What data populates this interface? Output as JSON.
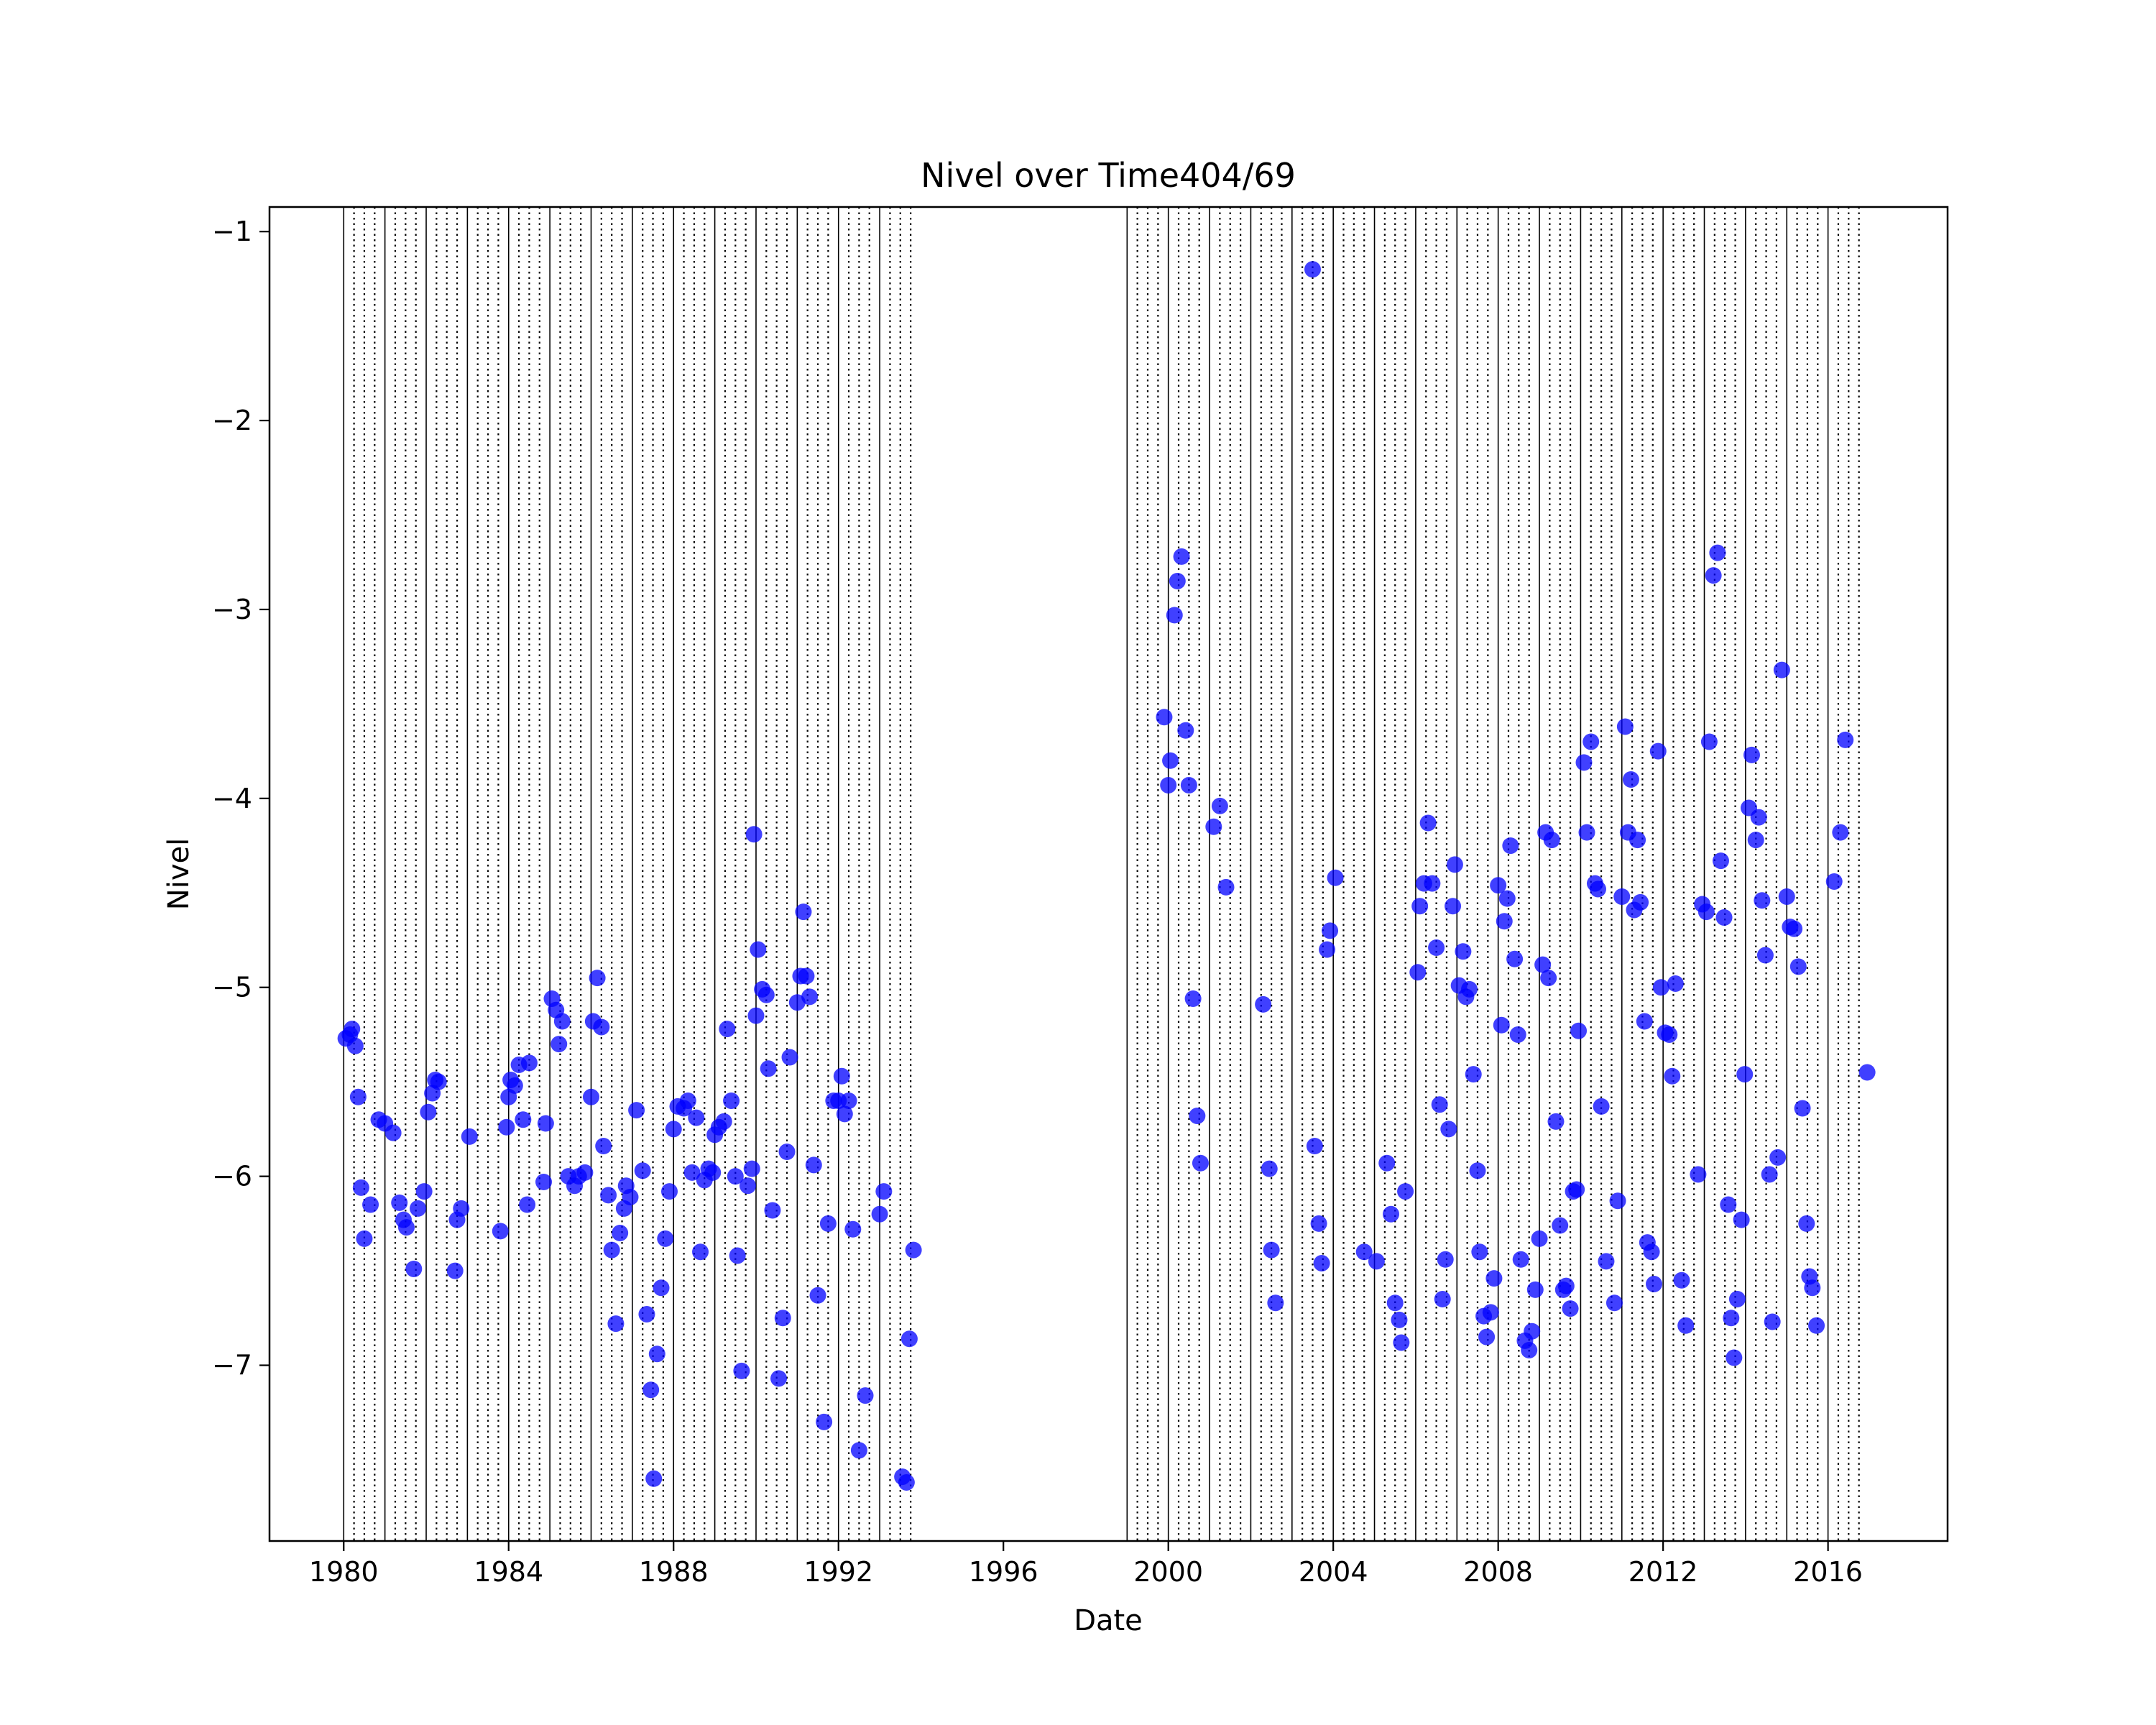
{
  "chart_data": {
    "type": "scatter",
    "title": "Nivel over Time404/69",
    "xlabel": "Date",
    "ylabel": "Nivel",
    "xlim": [
      1978.2,
      2018.9
    ],
    "ylim": [
      -7.93,
      -0.87
    ],
    "x_ticks": [
      {
        "value": 1980,
        "label": "1980"
      },
      {
        "value": 1984,
        "label": "1984"
      },
      {
        "value": 1988,
        "label": "1988"
      },
      {
        "value": 1992,
        "label": "1992"
      },
      {
        "value": 1996,
        "label": "1996"
      },
      {
        "value": 2000,
        "label": "2000"
      },
      {
        "value": 2004,
        "label": "2004"
      },
      {
        "value": 2008,
        "label": "2008"
      },
      {
        "value": 2012,
        "label": "2012"
      },
      {
        "value": 2016,
        "label": "2016"
      }
    ],
    "y_ticks": [
      {
        "value": -1,
        "label": "−1"
      },
      {
        "value": -2,
        "label": "−2"
      },
      {
        "value": -3,
        "label": "−3"
      },
      {
        "value": -4,
        "label": "−4"
      },
      {
        "value": -5,
        "label": "−5"
      },
      {
        "value": -6,
        "label": "−6"
      },
      {
        "value": -7,
        "label": "−7"
      }
    ],
    "vertical_lines": {
      "solid_years": [
        1980,
        1981,
        1982,
        1983,
        1984,
        1985,
        1986,
        1987,
        1988,
        1989,
        1990,
        1991,
        1992,
        1993,
        1999,
        2000,
        2001,
        2002,
        2003,
        2004,
        2005,
        2006,
        2007,
        2008,
        2009,
        2010,
        2011,
        2012,
        2013,
        2014,
        2015,
        2016
      ],
      "dotted_ranges": [
        [
          1980,
          1993.75
        ],
        [
          1999,
          2016.75
        ]
      ],
      "dotted_step": 0.25
    },
    "grid": false,
    "legend": "none",
    "marker_color": "#0000ff",
    "series": [
      {
        "points": [
          [
            1980.05,
            -5.27
          ],
          [
            1980.15,
            -5.25
          ],
          [
            1980.2,
            -5.22
          ],
          [
            1980.28,
            -5.31
          ],
          [
            1980.35,
            -5.58
          ],
          [
            1980.42,
            -6.06
          ],
          [
            1980.5,
            -6.33
          ],
          [
            1980.65,
            -6.15
          ],
          [
            1980.85,
            -5.7
          ],
          [
            1981.0,
            -5.72
          ],
          [
            1981.2,
            -5.77
          ],
          [
            1981.35,
            -6.14
          ],
          [
            1981.45,
            -6.23
          ],
          [
            1981.52,
            -6.27
          ],
          [
            1981.7,
            -6.49
          ],
          [
            1981.8,
            -6.17
          ],
          [
            1981.95,
            -6.08
          ],
          [
            1982.05,
            -5.66
          ],
          [
            1982.15,
            -5.56
          ],
          [
            1982.22,
            -5.49
          ],
          [
            1982.3,
            -5.5
          ],
          [
            1982.7,
            -6.5
          ],
          [
            1982.75,
            -6.23
          ],
          [
            1982.85,
            -6.17
          ],
          [
            1983.05,
            -5.79
          ],
          [
            1983.8,
            -6.29
          ],
          [
            1983.95,
            -5.74
          ],
          [
            1984.0,
            -5.58
          ],
          [
            1984.05,
            -5.49
          ],
          [
            1984.15,
            -5.52
          ],
          [
            1984.25,
            -5.41
          ],
          [
            1984.35,
            -5.7
          ],
          [
            1984.45,
            -6.15
          ],
          [
            1984.5,
            -5.4
          ],
          [
            1984.85,
            -6.03
          ],
          [
            1984.9,
            -5.72
          ],
          [
            1985.05,
            -5.06
          ],
          [
            1985.15,
            -5.12
          ],
          [
            1985.22,
            -5.3
          ],
          [
            1985.3,
            -5.18
          ],
          [
            1985.45,
            -6.0
          ],
          [
            1985.6,
            -6.05
          ],
          [
            1985.7,
            -6.0
          ],
          [
            1985.85,
            -5.98
          ],
          [
            1986.0,
            -5.58
          ],
          [
            1986.05,
            -5.18
          ],
          [
            1986.15,
            -4.95
          ],
          [
            1986.25,
            -5.21
          ],
          [
            1986.3,
            -5.84
          ],
          [
            1986.42,
            -6.1
          ],
          [
            1986.5,
            -6.39
          ],
          [
            1986.6,
            -6.78
          ],
          [
            1986.7,
            -6.3
          ],
          [
            1986.8,
            -6.17
          ],
          [
            1986.85,
            -6.05
          ],
          [
            1986.95,
            -6.11
          ],
          [
            1987.1,
            -5.65
          ],
          [
            1987.25,
            -5.97
          ],
          [
            1987.35,
            -6.73
          ],
          [
            1987.45,
            -7.13
          ],
          [
            1987.52,
            -7.6
          ],
          [
            1987.6,
            -6.94
          ],
          [
            1987.7,
            -6.59
          ],
          [
            1987.8,
            -6.33
          ],
          [
            1987.9,
            -6.08
          ],
          [
            1988.0,
            -5.75
          ],
          [
            1988.1,
            -5.63
          ],
          [
            1988.25,
            -5.64
          ],
          [
            1988.35,
            -5.6
          ],
          [
            1988.45,
            -5.98
          ],
          [
            1988.55,
            -5.69
          ],
          [
            1988.65,
            -6.4
          ],
          [
            1988.75,
            -6.02
          ],
          [
            1988.85,
            -5.96
          ],
          [
            1988.95,
            -5.98
          ],
          [
            1989.0,
            -5.78
          ],
          [
            1989.1,
            -5.74
          ],
          [
            1989.22,
            -5.71
          ],
          [
            1989.3,
            -5.22
          ],
          [
            1989.4,
            -5.6
          ],
          [
            1989.5,
            -6.0
          ],
          [
            1989.55,
            -6.42
          ],
          [
            1989.65,
            -7.03
          ],
          [
            1989.8,
            -6.05
          ],
          [
            1989.9,
            -5.96
          ],
          [
            1989.95,
            -4.19
          ],
          [
            1990.0,
            -5.15
          ],
          [
            1990.05,
            -4.8
          ],
          [
            1990.15,
            -5.01
          ],
          [
            1990.25,
            -5.04
          ],
          [
            1990.3,
            -5.43
          ],
          [
            1990.4,
            -6.18
          ],
          [
            1990.55,
            -7.07
          ],
          [
            1990.65,
            -6.75
          ],
          [
            1990.75,
            -5.87
          ],
          [
            1990.82,
            -5.37
          ],
          [
            1991.0,
            -5.08
          ],
          [
            1991.08,
            -4.94
          ],
          [
            1991.15,
            -4.6
          ],
          [
            1991.22,
            -4.94
          ],
          [
            1991.3,
            -5.05
          ],
          [
            1991.4,
            -5.94
          ],
          [
            1991.5,
            -6.63
          ],
          [
            1991.65,
            -7.3
          ],
          [
            1991.75,
            -6.25
          ],
          [
            1991.88,
            -5.6
          ],
          [
            1992.0,
            -5.6
          ],
          [
            1992.08,
            -5.47
          ],
          [
            1992.15,
            -5.67
          ],
          [
            1992.25,
            -5.6
          ],
          [
            1992.35,
            -6.28
          ],
          [
            1992.5,
            -7.45
          ],
          [
            1992.65,
            -7.16
          ],
          [
            1993.0,
            -6.2
          ],
          [
            1993.1,
            -6.08
          ],
          [
            1993.55,
            -7.59
          ],
          [
            1993.65,
            -7.62
          ],
          [
            1993.72,
            -6.86
          ],
          [
            1993.82,
            -6.39
          ],
          [
            1999.9,
            -3.57
          ],
          [
            2000.0,
            -3.93
          ],
          [
            2000.05,
            -3.8
          ],
          [
            2000.15,
            -3.03
          ],
          [
            2000.22,
            -2.85
          ],
          [
            2000.32,
            -2.72
          ],
          [
            2000.42,
            -3.64
          ],
          [
            2000.5,
            -3.93
          ],
          [
            2000.6,
            -5.06
          ],
          [
            2000.7,
            -5.68
          ],
          [
            2000.78,
            -5.93
          ],
          [
            2001.1,
            -4.15
          ],
          [
            2001.25,
            -4.04
          ],
          [
            2001.4,
            -4.47
          ],
          [
            2002.3,
            -5.09
          ],
          [
            2002.45,
            -5.96
          ],
          [
            2002.5,
            -6.39
          ],
          [
            2002.6,
            -6.67
          ],
          [
            2003.5,
            -1.2
          ],
          [
            2003.55,
            -5.84
          ],
          [
            2003.65,
            -6.25
          ],
          [
            2003.72,
            -6.46
          ],
          [
            2003.85,
            -4.8
          ],
          [
            2003.92,
            -4.7
          ],
          [
            2004.05,
            -4.42
          ],
          [
            2004.75,
            -6.4
          ],
          [
            2005.05,
            -6.45
          ],
          [
            2005.3,
            -5.93
          ],
          [
            2005.4,
            -6.2
          ],
          [
            2005.5,
            -6.67
          ],
          [
            2005.6,
            -6.76
          ],
          [
            2005.65,
            -6.88
          ],
          [
            2005.75,
            -6.08
          ],
          [
            2006.05,
            -4.92
          ],
          [
            2006.1,
            -4.57
          ],
          [
            2006.2,
            -4.45
          ],
          [
            2006.3,
            -4.13
          ],
          [
            2006.4,
            -4.45
          ],
          [
            2006.5,
            -4.79
          ],
          [
            2006.58,
            -5.62
          ],
          [
            2006.65,
            -6.65
          ],
          [
            2006.72,
            -6.44
          ],
          [
            2006.8,
            -5.75
          ],
          [
            2006.9,
            -4.57
          ],
          [
            2006.95,
            -4.35
          ],
          [
            2007.05,
            -4.99
          ],
          [
            2007.15,
            -4.81
          ],
          [
            2007.22,
            -5.05
          ],
          [
            2007.3,
            -5.01
          ],
          [
            2007.4,
            -5.46
          ],
          [
            2007.5,
            -5.97
          ],
          [
            2007.55,
            -6.4
          ],
          [
            2007.65,
            -6.74
          ],
          [
            2007.72,
            -6.85
          ],
          [
            2007.82,
            -6.72
          ],
          [
            2007.9,
            -6.54
          ],
          [
            2008.0,
            -4.46
          ],
          [
            2008.08,
            -5.2
          ],
          [
            2008.15,
            -4.65
          ],
          [
            2008.22,
            -4.53
          ],
          [
            2008.3,
            -4.25
          ],
          [
            2008.4,
            -4.85
          ],
          [
            2008.48,
            -5.25
          ],
          [
            2008.55,
            -6.44
          ],
          [
            2008.65,
            -6.87
          ],
          [
            2008.75,
            -6.92
          ],
          [
            2008.82,
            -6.82
          ],
          [
            2008.9,
            -6.6
          ],
          [
            2009.0,
            -6.33
          ],
          [
            2009.08,
            -4.88
          ],
          [
            2009.15,
            -4.18
          ],
          [
            2009.22,
            -4.95
          ],
          [
            2009.3,
            -4.22
          ],
          [
            2009.4,
            -5.71
          ],
          [
            2009.5,
            -6.26
          ],
          [
            2009.58,
            -6.6
          ],
          [
            2009.65,
            -6.58
          ],
          [
            2009.75,
            -6.7
          ],
          [
            2009.82,
            -6.08
          ],
          [
            2009.9,
            -6.07
          ],
          [
            2009.95,
            -5.23
          ],
          [
            2010.08,
            -3.81
          ],
          [
            2010.15,
            -4.18
          ],
          [
            2010.25,
            -3.7
          ],
          [
            2010.35,
            -4.45
          ],
          [
            2010.42,
            -4.48
          ],
          [
            2010.5,
            -5.63
          ],
          [
            2010.62,
            -6.45
          ],
          [
            2010.82,
            -6.67
          ],
          [
            2010.9,
            -6.13
          ],
          [
            2011.0,
            -4.52
          ],
          [
            2011.08,
            -3.62
          ],
          [
            2011.15,
            -4.18
          ],
          [
            2011.22,
            -3.9
          ],
          [
            2011.3,
            -4.59
          ],
          [
            2011.38,
            -4.22
          ],
          [
            2011.45,
            -4.55
          ],
          [
            2011.55,
            -5.18
          ],
          [
            2011.62,
            -6.35
          ],
          [
            2011.72,
            -6.4
          ],
          [
            2011.78,
            -6.57
          ],
          [
            2011.88,
            -3.75
          ],
          [
            2011.95,
            -5.0
          ],
          [
            2012.05,
            -5.24
          ],
          [
            2012.15,
            -5.25
          ],
          [
            2012.22,
            -5.47
          ],
          [
            2012.3,
            -4.98
          ],
          [
            2012.45,
            -6.55
          ],
          [
            2012.55,
            -6.79
          ],
          [
            2012.85,
            -5.99
          ],
          [
            2012.95,
            -4.56
          ],
          [
            2013.05,
            -4.6
          ],
          [
            2013.12,
            -3.7
          ],
          [
            2013.22,
            -2.82
          ],
          [
            2013.32,
            -2.7
          ],
          [
            2013.4,
            -4.33
          ],
          [
            2013.48,
            -4.63
          ],
          [
            2013.58,
            -6.15
          ],
          [
            2013.65,
            -6.75
          ],
          [
            2013.72,
            -6.96
          ],
          [
            2013.8,
            -6.65
          ],
          [
            2013.9,
            -6.23
          ],
          [
            2013.98,
            -5.46
          ],
          [
            2014.08,
            -4.05
          ],
          [
            2014.15,
            -3.77
          ],
          [
            2014.25,
            -4.22
          ],
          [
            2014.32,
            -4.1
          ],
          [
            2014.4,
            -4.54
          ],
          [
            2014.48,
            -4.83
          ],
          [
            2014.58,
            -5.99
          ],
          [
            2014.65,
            -6.77
          ],
          [
            2014.78,
            -5.9
          ],
          [
            2014.88,
            -3.32
          ],
          [
            2015.0,
            -4.52
          ],
          [
            2015.08,
            -4.68
          ],
          [
            2015.18,
            -4.69
          ],
          [
            2015.28,
            -4.89
          ],
          [
            2015.38,
            -5.64
          ],
          [
            2015.48,
            -6.25
          ],
          [
            2015.55,
            -6.53
          ],
          [
            2015.62,
            -6.59
          ],
          [
            2015.72,
            -6.79
          ],
          [
            2016.15,
            -4.44
          ],
          [
            2016.3,
            -4.18
          ],
          [
            2016.42,
            -3.69
          ],
          [
            2016.95,
            -5.45
          ]
        ]
      }
    ]
  }
}
